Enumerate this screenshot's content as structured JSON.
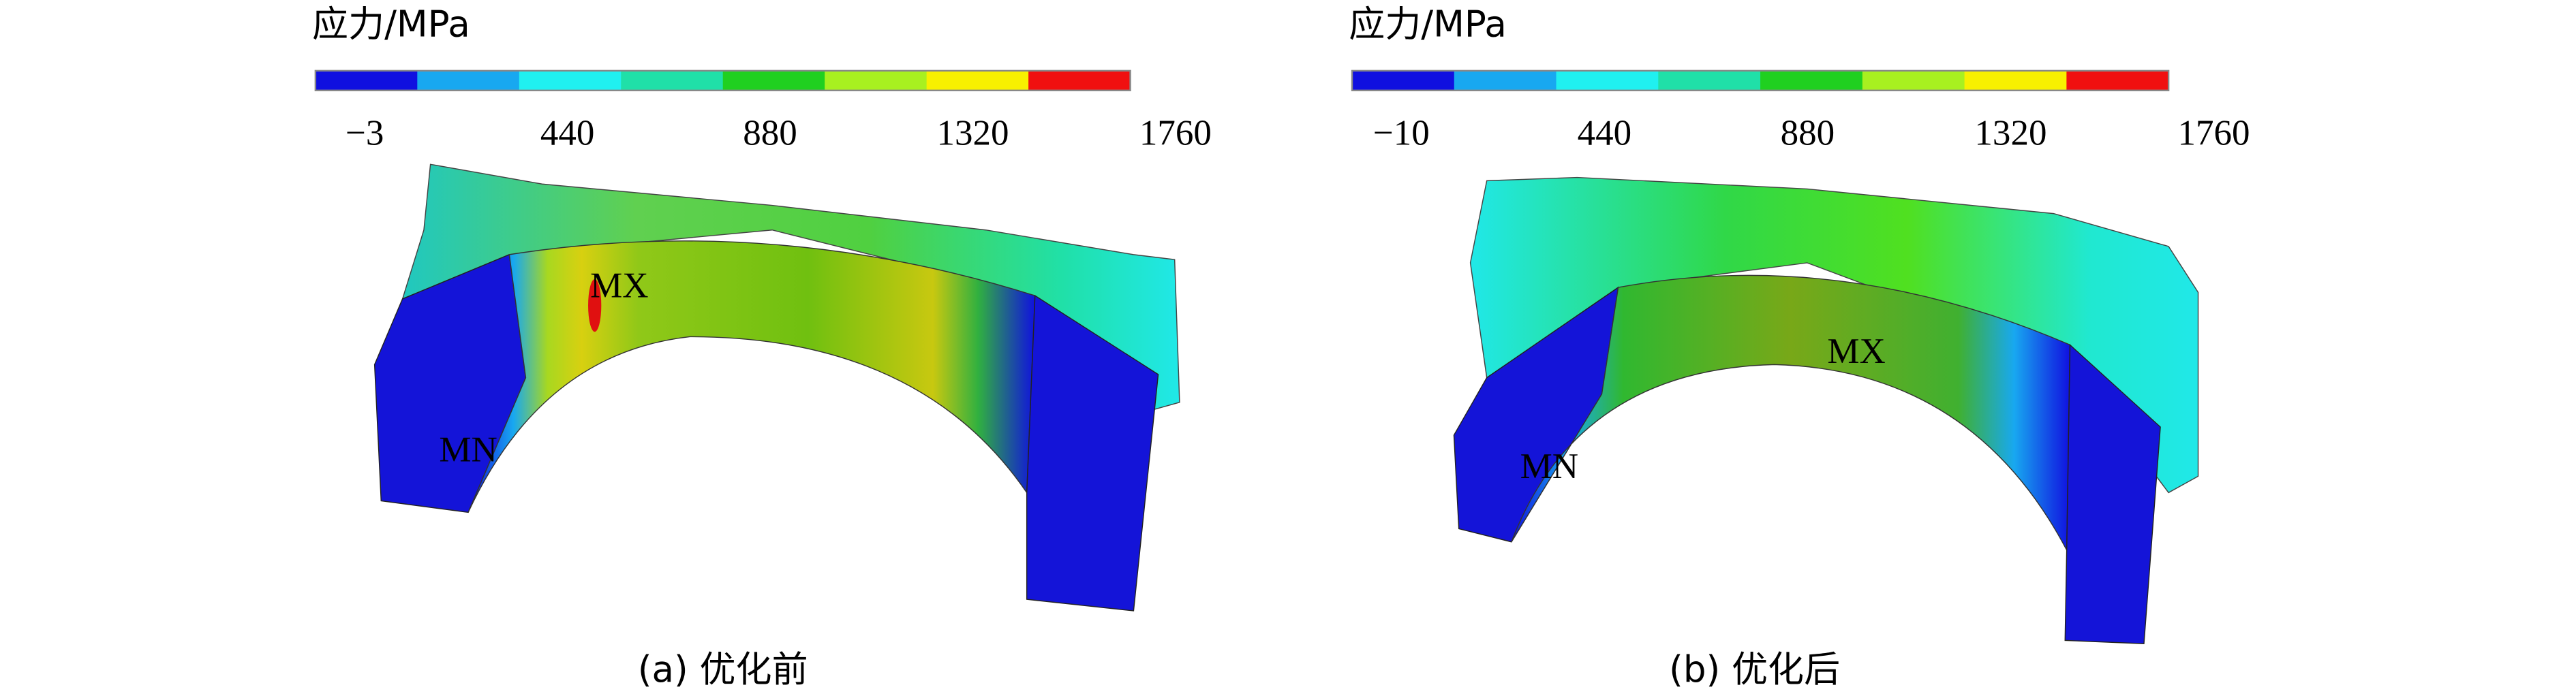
{
  "panels": [
    {
      "legend": {
        "title": "应力/MPa",
        "colors": [
          "#1010e0",
          "#18a8f0",
          "#20f0f0",
          "#20e0a8",
          "#20d020",
          "#a8f020",
          "#f8f000",
          "#f01010"
        ],
        "ticks": [
          "−3",
          "440",
          "880",
          "1320",
          "1760"
        ]
      },
      "labels": {
        "max": "MX",
        "min": "MN"
      },
      "caption": "(a) 优化前"
    },
    {
      "legend": {
        "title": "应力/MPa",
        "colors": [
          "#1010e0",
          "#18a8f0",
          "#20f0f0",
          "#20e0a8",
          "#20d020",
          "#a8f020",
          "#f8f000",
          "#f01010"
        ],
        "ticks": [
          "−10",
          "440",
          "880",
          "1320",
          "1760"
        ]
      },
      "labels": {
        "max": "MX",
        "min": "MN"
      },
      "caption": "(b) 优化后"
    }
  ]
}
